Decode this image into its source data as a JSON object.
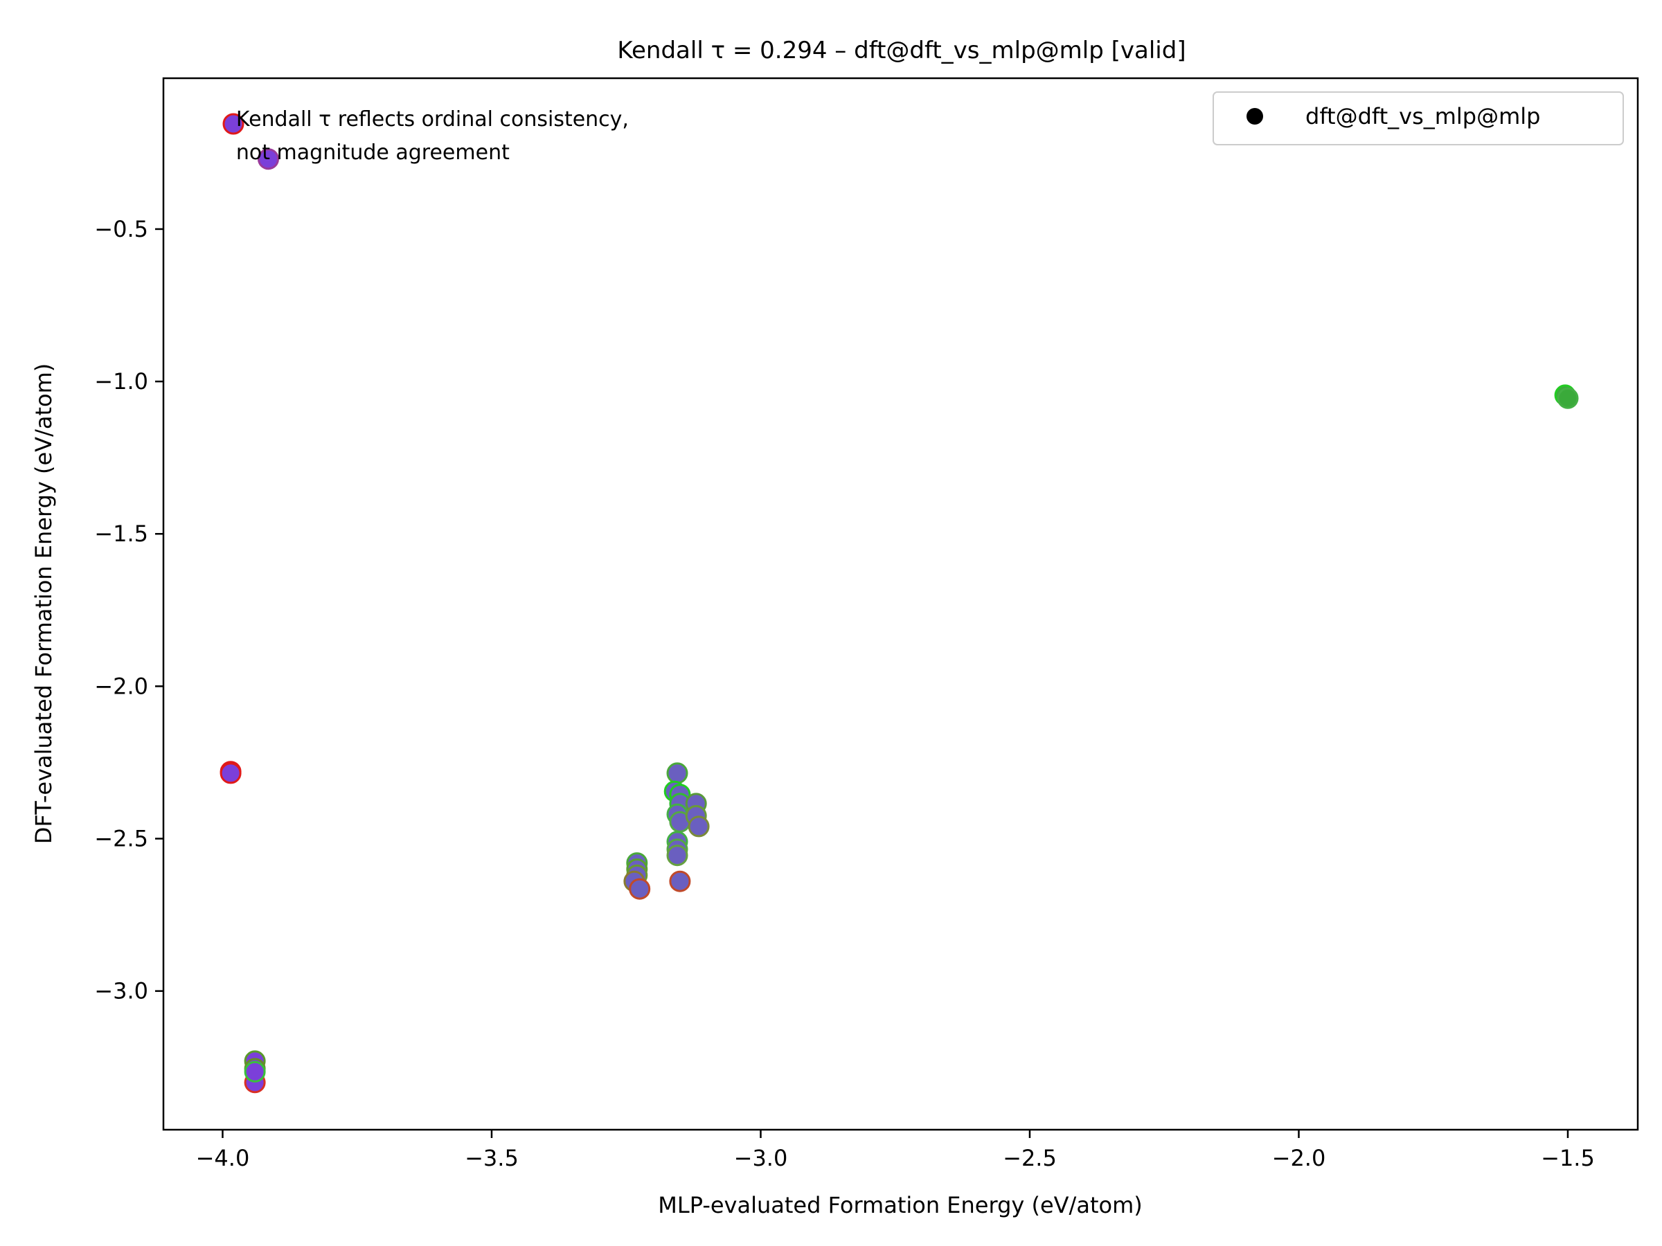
{
  "chart_data": {
    "type": "scatter",
    "title": "Kendall τ = 0.294 – dft@dft_vs_mlp@mlp [valid]",
    "xlabel": "MLP-evaluated Formation Energy (eV/atom)",
    "ylabel": "DFT-evaluated Formation Energy (eV/atom)",
    "xlim": [
      -4.11,
      -1.37
    ],
    "ylim": [
      -3.455,
      -0.005
    ],
    "xticks": [
      -4.0,
      -3.5,
      -3.0,
      -2.5,
      -2.0,
      -1.5
    ],
    "xtick_labels": [
      "−4.0",
      "−3.5",
      "−3.0",
      "−2.5",
      "−2.0",
      "−1.5"
    ],
    "yticks": [
      -0.5,
      -1.0,
      -1.5,
      -2.0,
      -2.5,
      -3.0
    ],
    "ytick_labels": [
      "−0.5",
      "−1.0",
      "−1.5",
      "−2.0",
      "−2.5",
      "−3.0"
    ],
    "grid": false,
    "legend": {
      "placement": "top-right",
      "entries": [
        "dft@dft_vs_mlp@mlp"
      ]
    },
    "annotation": {
      "lines": [
        "Kendall τ reflects ordinal consistency,",
        "not magnitude agreement"
      ],
      "x": -3.975,
      "y": -0.085
    },
    "series": [
      {
        "name": "dft@dft_vs_mlp@mlp",
        "points": [
          {
            "x": -3.98,
            "y": -0.155,
            "fill": "#7b3fd9",
            "edge": "#e01a1a"
          },
          {
            "x": -3.915,
            "y": -0.27,
            "fill": "#7b3fd9",
            "edge": "#9a3a9a"
          },
          {
            "x": -3.985,
            "y": -2.28,
            "fill": "#7b3fd9",
            "edge": "#e01a1a"
          },
          {
            "x": -3.985,
            "y": -2.285,
            "fill": "#7b3fd9",
            "edge": "#e01a1a"
          },
          {
            "x": -3.94,
            "y": -3.3,
            "fill": "#7b3fd9",
            "edge": "#d93025"
          },
          {
            "x": -3.94,
            "y": -3.23,
            "fill": "#7b3fd9",
            "edge": "#5a9a2a"
          },
          {
            "x": -3.94,
            "y": -3.255,
            "fill": "#7b3fd9",
            "edge": "#6a8a2a"
          },
          {
            "x": -3.94,
            "y": -3.265,
            "fill": "#7b3fd9",
            "edge": "#3ac03a"
          },
          {
            "x": -3.23,
            "y": -2.58,
            "fill": "#6a5fc0",
            "edge": "#4aa83a"
          },
          {
            "x": -3.23,
            "y": -2.6,
            "fill": "#6a5fc0",
            "edge": "#5aa030"
          },
          {
            "x": -3.23,
            "y": -2.62,
            "fill": "#6a5fc0",
            "edge": "#6a9a30"
          },
          {
            "x": -3.235,
            "y": -2.64,
            "fill": "#6a5fc0",
            "edge": "#8a7a30"
          },
          {
            "x": -3.225,
            "y": -2.665,
            "fill": "#6a5fc0",
            "edge": "#c04a2a"
          },
          {
            "x": -3.155,
            "y": -2.285,
            "fill": "#6a5fc0",
            "edge": "#4aa83a"
          },
          {
            "x": -3.16,
            "y": -2.345,
            "fill": "#6a5fc0",
            "edge": "#22cc22"
          },
          {
            "x": -3.15,
            "y": -2.355,
            "fill": "#6a5fc0",
            "edge": "#22cc22"
          },
          {
            "x": -3.15,
            "y": -2.385,
            "fill": "#6a5fc0",
            "edge": "#33bb33"
          },
          {
            "x": -3.155,
            "y": -2.42,
            "fill": "#6a5fc0",
            "edge": "#44b044"
          },
          {
            "x": -3.15,
            "y": -2.445,
            "fill": "#6a5fc0",
            "edge": "#55a844"
          },
          {
            "x": -3.155,
            "y": -2.51,
            "fill": "#6a5fc0",
            "edge": "#44b044"
          },
          {
            "x": -3.155,
            "y": -2.535,
            "fill": "#6a5fc0",
            "edge": "#55a844"
          },
          {
            "x": -3.155,
            "y": -2.555,
            "fill": "#6a5fc0",
            "edge": "#66a040"
          },
          {
            "x": -3.15,
            "y": -2.64,
            "fill": "#6a5fc0",
            "edge": "#c04a2a"
          },
          {
            "x": -3.12,
            "y": -2.385,
            "fill": "#6a5fc0",
            "edge": "#5a9a3a"
          },
          {
            "x": -3.12,
            "y": -2.425,
            "fill": "#6a5fc0",
            "edge": "#6a9a3a"
          },
          {
            "x": -3.115,
            "y": -2.46,
            "fill": "#6a5fc0",
            "edge": "#7a8a3a"
          },
          {
            "x": -1.505,
            "y": -1.045,
            "fill": "#3aaa3a",
            "edge": "#22cc22"
          },
          {
            "x": -1.5,
            "y": -1.055,
            "fill": "#3aaa3a",
            "edge": "#44b044"
          }
        ]
      }
    ]
  }
}
